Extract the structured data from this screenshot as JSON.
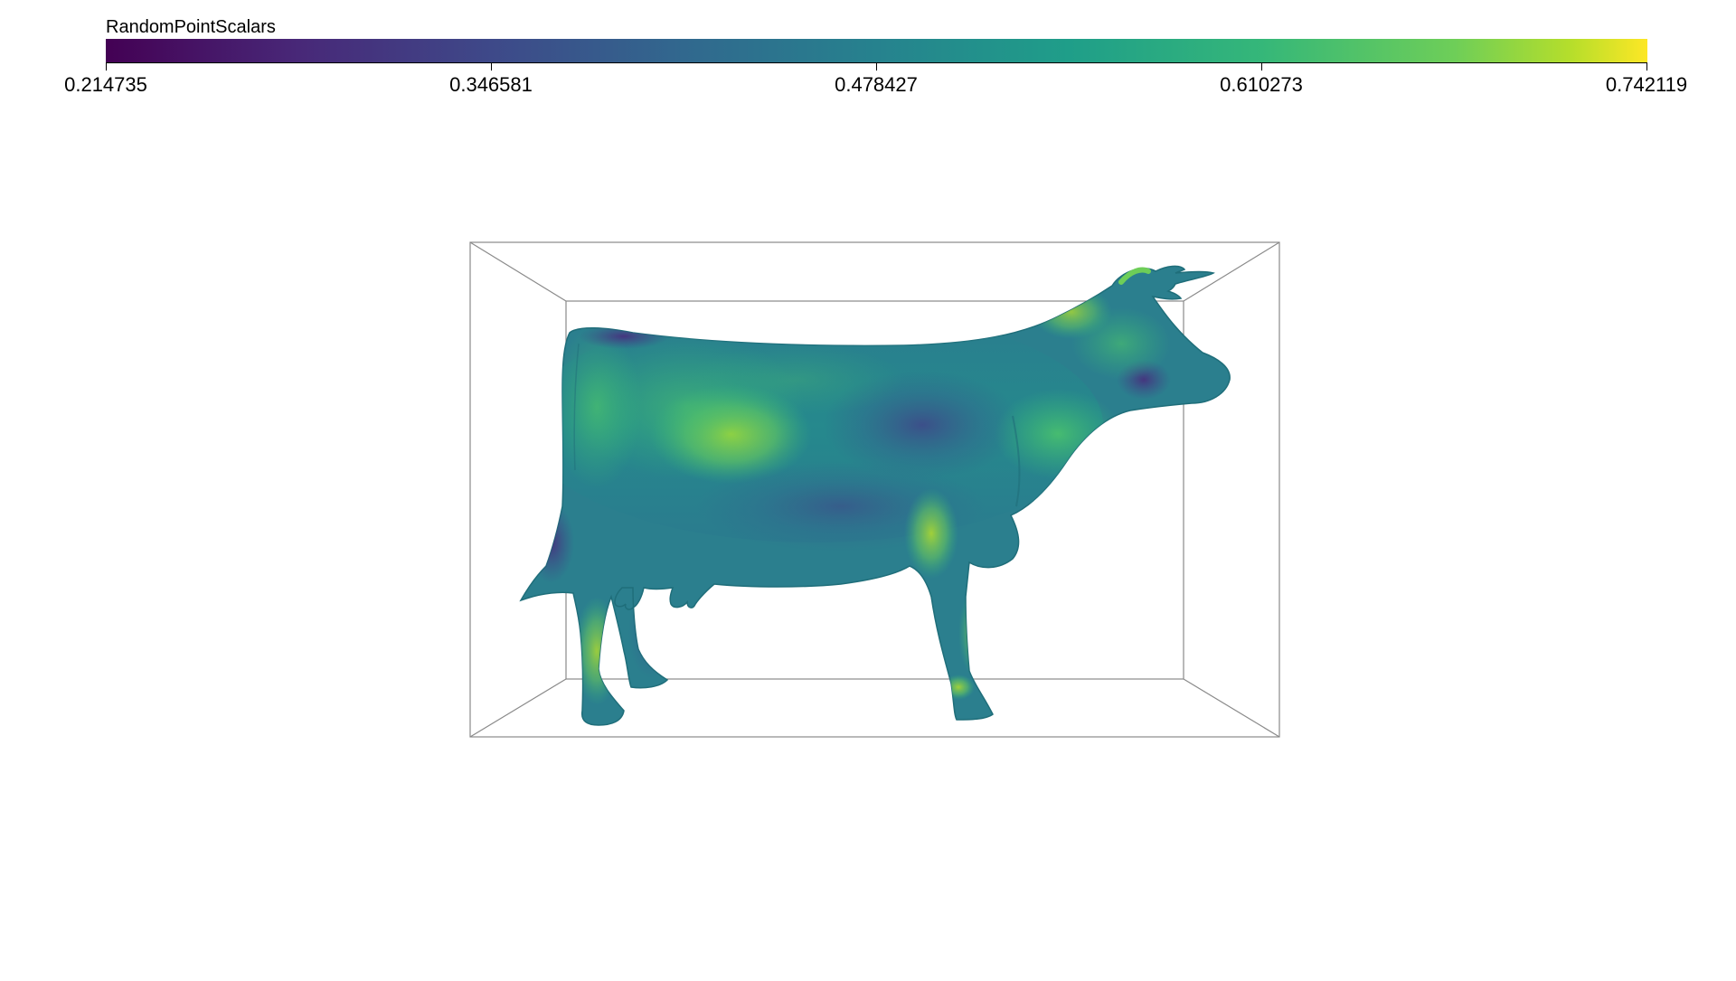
{
  "scalar_bar": {
    "title": "RandomPointScalars",
    "colormap": "viridis",
    "range": [
      0.214735,
      0.742119
    ],
    "ticks": [
      "0.214735",
      "0.346581",
      "0.478427",
      "0.610273",
      "0.742119"
    ]
  },
  "scene": {
    "object": "cow-mesh",
    "background": "#ffffff",
    "outline_color": "#8a8a8a"
  }
}
